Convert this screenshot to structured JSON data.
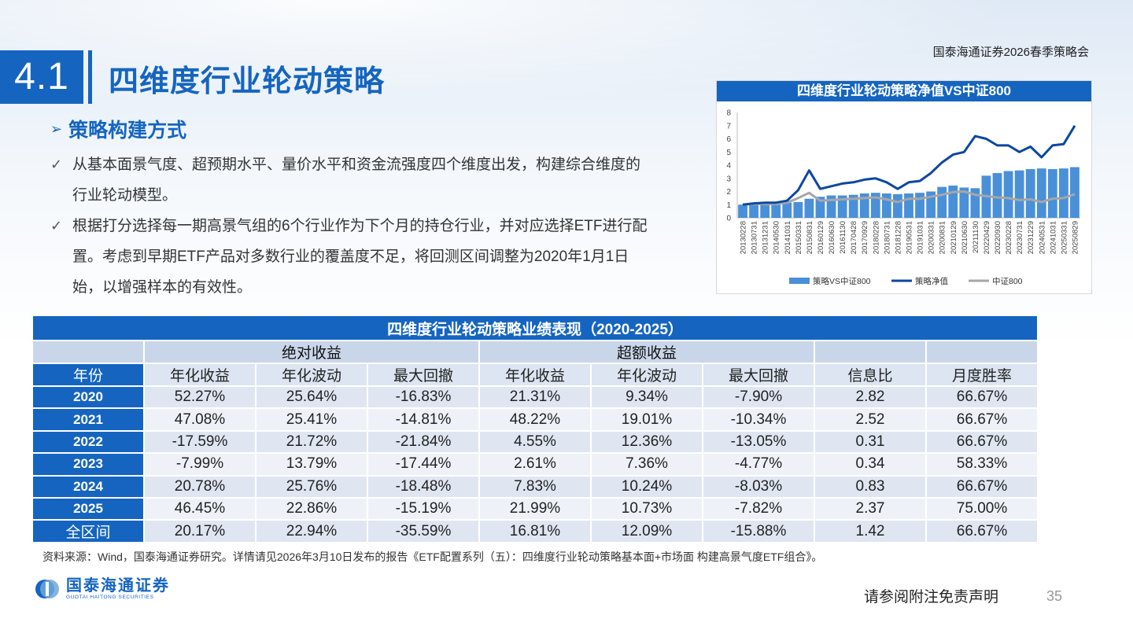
{
  "header": {
    "right_label": "国泰海通证券2026春季策略会"
  },
  "section": {
    "number": "4.1",
    "title": "四维度行业轮动策略"
  },
  "subhead": {
    "label": "策略构建方式",
    "arrow_glyph": "➢"
  },
  "bullets": [
    {
      "check": "✓",
      "text": "从基本面景气度、超预期水平、量价水平和资金流强度四个维度出发，构建综合维度的行业轮动模型。"
    },
    {
      "check": "✓",
      "text": "根据打分选择每一期高景气组的6个行业作为下个月的持仓行业，并对应选择ETF进行配置。考虑到早期ETF产品对多数行业的覆盖度不足，将回测区间调整为2020年1月1日始，以增强样本的有效性。"
    }
  ],
  "chart_data": {
    "type": "line",
    "title": "四维度行业轮动策略净值VS中证800",
    "ylim": [
      0,
      8
    ],
    "yticks": [
      "0",
      "1",
      "2",
      "3",
      "4",
      "5",
      "6",
      "7",
      "8"
    ],
    "xticks": [
      "20130228",
      "20130731",
      "20131231",
      "20140530",
      "20141031",
      "20150331",
      "20150831",
      "20160129",
      "20160630",
      "20161130",
      "20170428",
      "20170929",
      "20180228",
      "20180731",
      "20181228",
      "20190531",
      "20191031",
      "20200331",
      "20200831",
      "20210129",
      "20210630",
      "20211130",
      "20220429",
      "20220930",
      "20230228",
      "20230731",
      "20231229",
      "20240531",
      "20241031",
      "20250331",
      "20250829"
    ],
    "legend": [
      "策略VS中证800",
      "策略净值",
      "中证800"
    ],
    "colors": {
      "bar": "#4a90d9",
      "strategy": "#0d47a1",
      "index": "#a6a6a6"
    },
    "series": [
      {
        "name": "策略VS中证800",
        "style": "bar",
        "values": [
          1.0,
          1.05,
          1.1,
          1.1,
          1.15,
          1.2,
          1.45,
          1.6,
          1.7,
          1.7,
          1.75,
          1.85,
          1.9,
          1.85,
          1.8,
          1.85,
          1.9,
          2.0,
          2.35,
          2.45,
          2.3,
          2.25,
          3.2,
          3.4,
          3.55,
          3.6,
          3.7,
          3.75,
          3.7,
          3.75,
          3.85
        ]
      },
      {
        "name": "策略净值",
        "style": "line",
        "values": [
          1.0,
          1.1,
          1.15,
          1.15,
          1.3,
          2.1,
          3.6,
          2.2,
          2.4,
          2.6,
          2.7,
          2.9,
          3.0,
          2.7,
          2.2,
          2.7,
          2.8,
          3.4,
          4.2,
          4.8,
          5.0,
          6.2,
          6.0,
          5.5,
          5.5,
          5.0,
          5.4,
          4.6,
          5.5,
          5.6,
          7.0
        ]
      },
      {
        "name": "中证800",
        "style": "line",
        "values": [
          1.0,
          1.05,
          1.05,
          1.05,
          1.15,
          1.5,
          1.9,
          1.3,
          1.35,
          1.4,
          1.45,
          1.5,
          1.55,
          1.4,
          1.2,
          1.45,
          1.45,
          1.6,
          1.75,
          1.95,
          2.0,
          1.75,
          1.65,
          1.55,
          1.5,
          1.35,
          1.4,
          1.2,
          1.45,
          1.5,
          1.8
        ]
      }
    ]
  },
  "table": {
    "title": "四维度行业轮动策略业绩表现（2020-2025）",
    "group_abs": "绝对收益",
    "group_excess": "超额收益",
    "headers": [
      "年份",
      "年化收益",
      "年化波动",
      "最大回撤",
      "年化收益",
      "年化波动",
      "最大回撤",
      "信息比",
      "月度胜率"
    ],
    "rows": [
      [
        "2020",
        "52.27%",
        "25.64%",
        "-16.83%",
        "21.31%",
        "9.34%",
        "-7.90%",
        "2.82",
        "66.67%"
      ],
      [
        "2021",
        "47.08%",
        "25.41%",
        "-14.81%",
        "48.22%",
        "19.01%",
        "-10.34%",
        "2.52",
        "66.67%"
      ],
      [
        "2022",
        "-17.59%",
        "21.72%",
        "-21.84%",
        "4.55%",
        "12.36%",
        "-13.05%",
        "0.31",
        "66.67%"
      ],
      [
        "2023",
        "-7.99%",
        "13.79%",
        "-17.44%",
        "2.61%",
        "7.36%",
        "-4.77%",
        "0.34",
        "58.33%"
      ],
      [
        "2024",
        "20.78%",
        "25.76%",
        "-18.48%",
        "7.83%",
        "10.24%",
        "-8.03%",
        "0.83",
        "66.67%"
      ],
      [
        "2025",
        "46.45%",
        "22.86%",
        "-15.19%",
        "21.99%",
        "10.73%",
        "-7.82%",
        "2.37",
        "75.00%"
      ],
      [
        "全区间",
        "20.17%",
        "22.94%",
        "-35.59%",
        "16.81%",
        "12.09%",
        "-15.88%",
        "1.42",
        "66.67%"
      ]
    ]
  },
  "source": "资料来源：Wind，国泰海通证券研究。详情请见2026年3月10日发布的报告《ETF配置系列（五）：四维度行业轮动策略基本面+市场面 构建高景气度ETF组合》。",
  "footer": {
    "logo_cn": "国泰海通证券",
    "logo_en": "GUOTAI HAITONG SECURITIES",
    "disclaimer": "请参阅附注免责声明",
    "page_number": "35"
  }
}
